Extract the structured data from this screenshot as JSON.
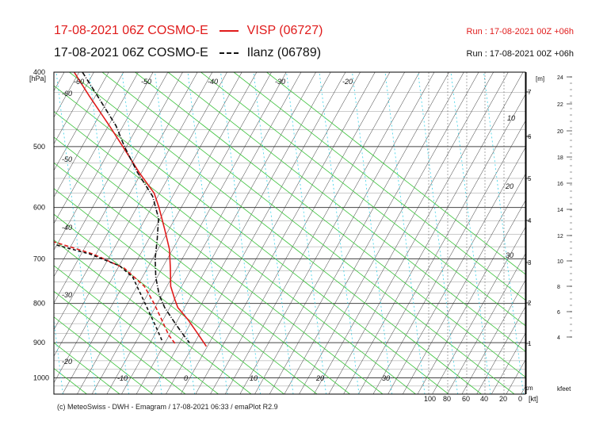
{
  "header": {
    "line1_model": "17-08-2021 06Z COSMO-E",
    "line1_station": "VISP (06727)",
    "line1_run": "Run : 17-08-2021 00Z +06h",
    "line2_model": "17-08-2021 06Z COSMO-E",
    "line2_station": "Ilanz (06789)",
    "line2_run": "Run : 17-08-2021 00Z +06h"
  },
  "footer": "(c) MeteoSwiss - DWH - Emagram / 17-08-2021  06:33 / emaPlot R2.9",
  "chart_data": {
    "type": "line",
    "y_unit_label": "[hPa]",
    "pressure_ticks": [
      400,
      500,
      600,
      700,
      800,
      900,
      1000
    ],
    "ylim": [
      400,
      1050
    ],
    "xlim": [
      -70,
      40
    ],
    "temp_ticks": [
      -60,
      -50,
      -40,
      -30,
      -20,
      -10,
      0,
      10,
      20,
      30
    ],
    "dry_adiabat_labels": [
      "-60",
      "-50",
      "-40",
      "-30",
      "-20",
      "-10",
      "0",
      "10",
      "20",
      "30"
    ],
    "wind_axis_labels": [
      "100",
      "80",
      "60",
      "40",
      "20",
      "0"
    ],
    "wind_axis_unit": "[kt]",
    "km_unit": "km",
    "height_m_unit": "[m]",
    "height_km_ticks": [
      "1",
      "2",
      "3",
      "4",
      "5",
      "6",
      "7"
    ],
    "mixing_ratio_labels": [
      "10",
      "20",
      "30"
    ],
    "kfeet_unit": "kfeet",
    "kfeet_ticks": [
      "4",
      "6",
      "8",
      "10",
      "12",
      "14",
      "16",
      "18",
      "20",
      "22",
      "24"
    ],
    "series": [
      {
        "name": "VISP (06727)",
        "color": "#e01b1b",
        "kind": "temperature",
        "points": [
          [
            -19.5,
            400
          ],
          [
            -19,
            430
          ],
          [
            -18,
            470
          ],
          [
            -17.5,
            500
          ],
          [
            -17,
            540
          ],
          [
            -16,
            575
          ],
          [
            -17,
            600
          ],
          [
            -19,
            640
          ],
          [
            -21,
            680
          ],
          [
            -24,
            720
          ],
          [
            -27,
            760
          ],
          [
            -28,
            790
          ],
          [
            -28.5,
            810
          ],
          [
            -27.5,
            840
          ],
          [
            -27,
            870
          ],
          [
            -26.5,
            910
          ]
        ]
      },
      {
        "name": "VISP (06727)",
        "color": "#e01b1b",
        "kind": "dewpoint",
        "points": [
          [
            -52,
            405
          ],
          [
            -51.5,
            430
          ],
          [
            -52,
            470
          ],
          [
            -56,
            500
          ],
          [
            -65,
            560
          ],
          [
            -70,
            610
          ],
          [
            -57,
            660
          ],
          [
            -45,
            690
          ],
          [
            -38,
            720
          ],
          [
            -35,
            760
          ],
          [
            -35,
            800
          ],
          [
            -35.5,
            840
          ],
          [
            -36,
            880
          ],
          [
            -35.5,
            905
          ]
        ]
      },
      {
        "name": "Ilanz (06789)",
        "color": "#111111",
        "kind": "temperature",
        "points": [
          [
            -17,
            400
          ],
          [
            -16.5,
            430
          ],
          [
            -16,
            470
          ],
          [
            -17,
            500
          ],
          [
            -17.5,
            540
          ],
          [
            -17,
            580
          ],
          [
            -19,
            620
          ],
          [
            -23,
            660
          ],
          [
            -27,
            700
          ],
          [
            -30,
            740
          ],
          [
            -32,
            780
          ],
          [
            -32.5,
            810
          ],
          [
            -32,
            850
          ],
          [
            -31.5,
            880
          ],
          [
            -31,
            900
          ]
        ]
      },
      {
        "name": "Ilanz (06789)",
        "color": "#111111",
        "kind": "dewpoint",
        "points": [
          [
            -51,
            405
          ],
          [
            -51,
            440
          ],
          [
            -52,
            480
          ],
          [
            -56,
            520
          ],
          [
            -65,
            580
          ],
          [
            -70,
            620
          ],
          [
            -60,
            660
          ],
          [
            -46,
            690
          ],
          [
            -39,
            715
          ],
          [
            -37,
            740
          ],
          [
            -37.5,
            780
          ],
          [
            -38,
            820
          ],
          [
            -38.5,
            860
          ],
          [
            -39,
            895
          ]
        ]
      }
    ]
  }
}
